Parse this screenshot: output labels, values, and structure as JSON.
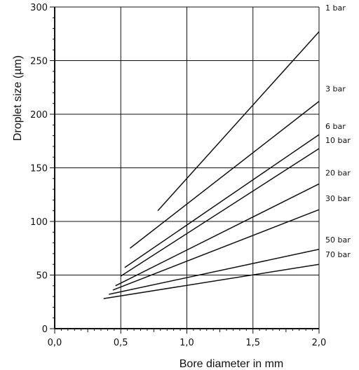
{
  "chart_data": {
    "type": "line",
    "xlabel": "Bore diameter in mm",
    "ylabel": "Droplet size (µm)",
    "xlim": [
      0.0,
      2.0
    ],
    "ylim": [
      0,
      300
    ],
    "x_ticks": [
      "0,0",
      "0,5",
      "1,0",
      "1,5",
      "2,0"
    ],
    "y_ticks": [
      "0",
      "50",
      "100",
      "150",
      "200",
      "250",
      "300"
    ],
    "grid": true,
    "line_color": "#111111",
    "series": [
      {
        "name": "1 bar",
        "x": [
          0.78,
          2.0
        ],
        "y": [
          110,
          277
        ]
      },
      {
        "name": "3 bar",
        "x": [
          0.57,
          2.0
        ],
        "y": [
          75,
          212
        ]
      },
      {
        "name": "6 bar",
        "x": [
          0.53,
          2.0
        ],
        "y": [
          57,
          181
        ]
      },
      {
        "name": "10 bar",
        "x": [
          0.5,
          2.0
        ],
        "y": [
          49,
          168
        ]
      },
      {
        "name": "20 bar",
        "x": [
          0.46,
          2.0
        ],
        "y": [
          40,
          135
        ]
      },
      {
        "name": "30 bar",
        "x": [
          0.44,
          2.0
        ],
        "y": [
          36,
          111
        ]
      },
      {
        "name": "50 bar",
        "x": [
          0.41,
          2.0
        ],
        "y": [
          32,
          74
        ]
      },
      {
        "name": "70 bar",
        "x": [
          0.37,
          2.0
        ],
        "y": [
          28,
          60
        ]
      }
    ]
  }
}
